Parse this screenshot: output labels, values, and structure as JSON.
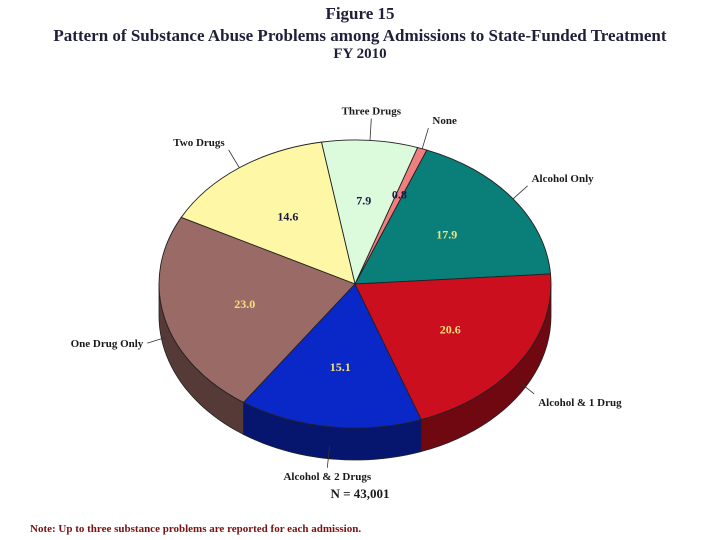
{
  "header": {
    "figure": "Figure 15",
    "title": "Pattern of Substance Abuse Problems among Admissions to State-Funded Treatment",
    "year": "FY 2010"
  },
  "chart_data": {
    "type": "pie",
    "title": "Pattern of Substance Abuse Problems among Admissions to State-Funded Treatment",
    "slices": [
      {
        "label": "Alcohol Only",
        "value": 17.9,
        "color": "#0a7f7a"
      },
      {
        "label": "None",
        "value": 0.8,
        "value_label": "0.8",
        "color": "#f07e7e"
      },
      {
        "label": "Three Drugs",
        "value": 7.9,
        "color": "#dcfadc"
      },
      {
        "label": "Two Drugs",
        "value": 14.6,
        "color": "#fdf7a6"
      },
      {
        "label": "One Drug Only",
        "value": 23.0,
        "color": "#9a6a66"
      },
      {
        "label": "Alcohol & 2 Drugs",
        "value": 15.1,
        "color": "#0a27c8"
      },
      {
        "label": "Alcohol & 1 Drug",
        "value": 20.6,
        "color": "#cc0f1e"
      }
    ]
  },
  "footer": {
    "n": "N = 43,001",
    "note": "Note: Up to three substance problems are reported for each admission."
  }
}
